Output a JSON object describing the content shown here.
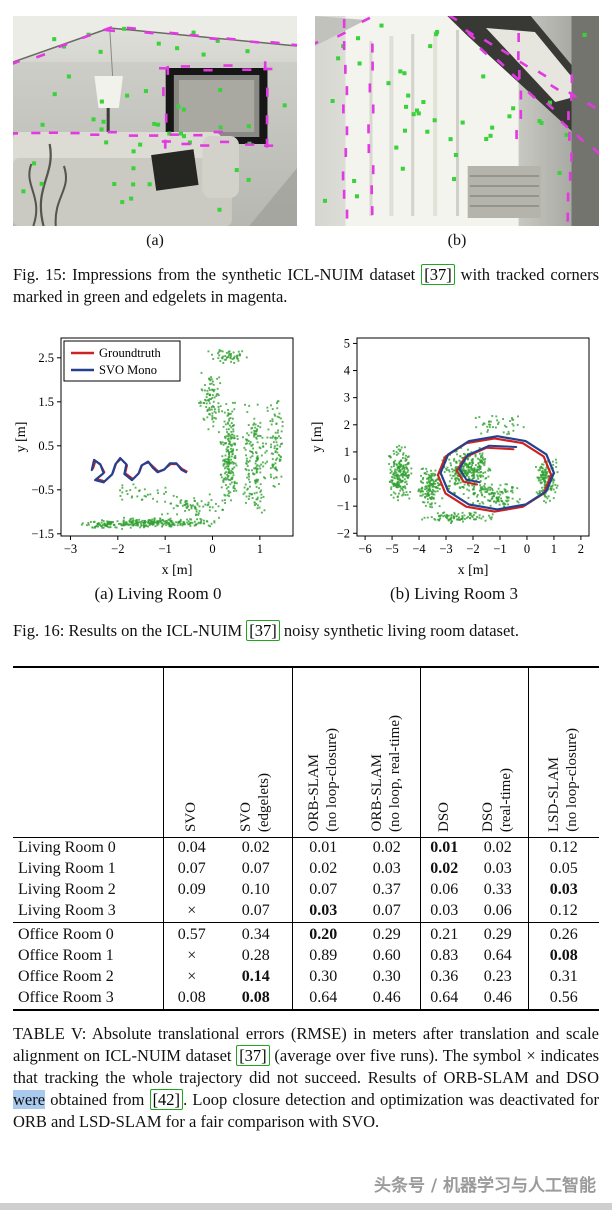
{
  "fig15": {
    "label_a": "(a)",
    "label_b": "(b)",
    "caption": {
      "part1": "Fig. 15: Impressions from the synthetic ICL-NUIM dataset ",
      "cite1": "[37]",
      "part2": " with tracked corners marked in green and edgelets in magenta."
    },
    "marker_colors": {
      "corner": "#3ad23a",
      "edgelet": "#e23ae2"
    },
    "scene_a_markers": {
      "corners": 48,
      "edges": [
        [
          2,
          46,
          95,
          12
        ],
        [
          95,
          12,
          277,
          30
        ],
        [
          150,
          52,
          250,
          52
        ],
        [
          150,
          128,
          250,
          128
        ],
        [
          150,
          52,
          150,
          128
        ],
        [
          250,
          52,
          250,
          128
        ],
        [
          0,
          118,
          200,
          118
        ]
      ]
    },
    "scene_b_markers": {
      "corners": 42,
      "edges": [
        [
          135,
          4,
          272,
          92
        ],
        [
          152,
          20,
          276,
          135
        ],
        [
          30,
          10,
          30,
          200
        ],
        [
          55,
          30,
          55,
          195
        ],
        [
          250,
          60,
          250,
          200
        ],
        [
          0,
          30,
          50,
          4
        ],
        [
          200,
          20,
          200,
          120
        ]
      ]
    }
  },
  "fig16": {
    "label_a": "(a) Living Room 0",
    "label_b": "(b) Living Room 3",
    "caption": {
      "part1": "Fig. 16: Results on the ICL-NUIM ",
      "cite1": "[37]",
      "part2": " noisy synthetic living room dataset."
    }
  },
  "chart_data": [
    {
      "type": "scatter",
      "name": "Living Room 0",
      "xlabel": "x [m]",
      "ylabel": "y [m]",
      "xlim": [
        -3.2,
        1.7
      ],
      "ylim": [
        -1.55,
        2.95
      ],
      "xticks": [
        -3,
        -2,
        -1,
        0,
        1
      ],
      "yticks": [
        -1.5,
        -0.5,
        0.5,
        1.5,
        2.5
      ],
      "grid": false,
      "legend_position": "top-left",
      "legend": [
        {
          "name": "Groundtruth",
          "color": "#cc2222"
        },
        {
          "name": "SVO Mono",
          "color": "#25408f"
        }
      ],
      "point_color": "#2fa02f",
      "clusters": [
        {
          "cx": -1.2,
          "cy": -1.25,
          "sx": 1.5,
          "sy": 0.12,
          "n": 230
        },
        {
          "cx": -2.3,
          "cy": -1.3,
          "sx": 0.5,
          "sy": 0.1,
          "n": 60
        },
        {
          "cx": 0.35,
          "cy": 0.3,
          "sx": 0.2,
          "sy": 1.3,
          "n": 200
        },
        {
          "cx": 0.9,
          "cy": 0.2,
          "sx": 0.3,
          "sy": 1.4,
          "n": 170
        },
        {
          "cx": 1.35,
          "cy": 0.5,
          "sx": 0.15,
          "sy": 1.2,
          "n": 80
        },
        {
          "cx": -0.05,
          "cy": 1.5,
          "sx": 0.25,
          "sy": 0.9,
          "n": 90
        },
        {
          "cx": -0.4,
          "cy": -0.9,
          "sx": 0.7,
          "sy": 0.3,
          "n": 70
        },
        {
          "cx": 0.3,
          "cy": 2.55,
          "sx": 0.5,
          "sy": 0.2,
          "n": 50
        },
        {
          "cx": -1.5,
          "cy": -0.6,
          "sx": 0.7,
          "sy": 0.3,
          "n": 30
        }
      ],
      "trajectories": [
        {
          "name": "Groundtruth",
          "color": "#cc2222",
          "width": 1.6,
          "points": [
            [
              -2.52,
              -0.02
            ],
            [
              -2.47,
              0.15
            ],
            [
              -2.35,
              0.05
            ],
            [
              -2.28,
              -0.1
            ],
            [
              -2.45,
              -0.25
            ],
            [
              -2.28,
              -0.3
            ],
            [
              -2.1,
              -0.12
            ],
            [
              -2.03,
              0.1
            ],
            [
              -1.93,
              0.2
            ],
            [
              -1.8,
              0.06
            ],
            [
              -1.84,
              -0.12
            ],
            [
              -1.68,
              -0.25
            ],
            [
              -1.54,
              -0.1
            ],
            [
              -1.48,
              0.07
            ],
            [
              -1.34,
              0.12
            ],
            [
              -1.24,
              0.02
            ],
            [
              -1.14,
              -0.08
            ],
            [
              -1.0,
              -0.02
            ],
            [
              -0.88,
              0.08
            ],
            [
              -0.74,
              0.08
            ],
            [
              -0.64,
              -0.02
            ],
            [
              -0.54,
              -0.08
            ]
          ]
        },
        {
          "name": "SVO Mono",
          "color": "#25408f",
          "width": 2.2,
          "points": [
            [
              -2.55,
              -0.05
            ],
            [
              -2.5,
              0.18
            ],
            [
              -2.37,
              0.08
            ],
            [
              -2.3,
              -0.12
            ],
            [
              -2.48,
              -0.28
            ],
            [
              -2.3,
              -0.33
            ],
            [
              -2.12,
              -0.15
            ],
            [
              -2.05,
              0.08
            ],
            [
              -1.95,
              0.22
            ],
            [
              -1.82,
              0.08
            ],
            [
              -1.86,
              -0.14
            ],
            [
              -1.7,
              -0.28
            ],
            [
              -1.56,
              -0.13
            ],
            [
              -1.5,
              0.05
            ],
            [
              -1.36,
              0.14
            ],
            [
              -1.26,
              0.0
            ],
            [
              -1.16,
              -0.1
            ],
            [
              -1.02,
              -0.04
            ],
            [
              -0.9,
              0.1
            ],
            [
              -0.76,
              0.1
            ],
            [
              -0.66,
              -0.04
            ],
            [
              -0.56,
              -0.1
            ]
          ]
        }
      ]
    },
    {
      "type": "scatter",
      "name": "Living Room 3",
      "xlabel": "x [m]",
      "ylabel": "y [m]",
      "xlim": [
        -6.3,
        2.3
      ],
      "ylim": [
        -2.1,
        5.2
      ],
      "xticks": [
        -6,
        -5,
        -4,
        -3,
        -2,
        -1,
        0,
        1,
        2
      ],
      "yticks": [
        -2,
        -1,
        0,
        1,
        2,
        3,
        4,
        5
      ],
      "grid": false,
      "legend": [],
      "point_color": "#2fa02f",
      "clusters": [
        {
          "cx": -4.7,
          "cy": 0.2,
          "sx": 0.45,
          "sy": 1.1,
          "n": 200
        },
        {
          "cx": -3.6,
          "cy": -0.3,
          "sx": 0.5,
          "sy": 0.8,
          "n": 150
        },
        {
          "cx": -2.2,
          "cy": 0.3,
          "sx": 1.0,
          "sy": 0.9,
          "n": 300
        },
        {
          "cx": -1.2,
          "cy": -0.6,
          "sx": 1.0,
          "sy": 0.5,
          "n": 120
        },
        {
          "cx": 0.7,
          "cy": 0.0,
          "sx": 0.45,
          "sy": 0.9,
          "n": 150
        },
        {
          "cx": -2.5,
          "cy": -1.4,
          "sx": 1.6,
          "sy": 0.25,
          "n": 90
        },
        {
          "cx": -1.0,
          "cy": 2.0,
          "sx": 1.2,
          "sy": 0.5,
          "n": 40
        }
      ],
      "trajectories": [
        {
          "name": "Groundtruth",
          "color": "#cc2222",
          "width": 2.2,
          "points": [
            [
              0.9,
              0.15
            ],
            [
              0.62,
              0.83
            ],
            [
              -0.15,
              1.32
            ],
            [
              -1.2,
              1.5
            ],
            [
              -2.25,
              1.32
            ],
            [
              -3.02,
              0.83
            ],
            [
              -3.3,
              0.15
            ],
            [
              -3.02,
              -0.53
            ],
            [
              -2.25,
              -1.02
            ],
            [
              -1.2,
              -1.2
            ],
            [
              -0.15,
              -1.02
            ],
            [
              0.62,
              -0.53
            ],
            [
              0.9,
              0.15
            ]
          ]
        },
        {
          "name": "SVO Mono",
          "color": "#25408f",
          "width": 2.2,
          "points": [
            [
              1.0,
              0.23
            ],
            [
              0.72,
              0.91
            ],
            [
              -0.05,
              1.4
            ],
            [
              -1.1,
              1.58
            ],
            [
              -2.15,
              1.4
            ],
            [
              -2.92,
              0.91
            ],
            [
              -3.2,
              0.23
            ],
            [
              -2.92,
              -0.45
            ],
            [
              -2.15,
              -0.94
            ],
            [
              -1.1,
              -1.12
            ],
            [
              -0.05,
              -0.94
            ],
            [
              0.72,
              -0.45
            ],
            [
              1.0,
              0.23
            ]
          ]
        },
        {
          "name": "",
          "color": "#cc2222",
          "width": 2.0,
          "points": [
            [
              -0.5,
              1.1
            ],
            [
              -1.5,
              1.15
            ],
            [
              -2.3,
              0.8
            ],
            [
              -2.6,
              0.3
            ],
            [
              -2.35,
              -0.1
            ],
            [
              -1.85,
              -0.2
            ]
          ]
        },
        {
          "name": "",
          "color": "#25408f",
          "width": 2.0,
          "points": [
            [
              -0.4,
              1.18
            ],
            [
              -1.4,
              1.23
            ],
            [
              -2.2,
              0.88
            ],
            [
              -2.5,
              0.38
            ],
            [
              -2.25,
              -0.02
            ],
            [
              -1.75,
              -0.12
            ]
          ]
        }
      ]
    }
  ],
  "table": {
    "vlines": [
      0,
      2,
      4,
      6
    ],
    "headers": [
      [
        "SVO",
        ""
      ],
      [
        "SVO",
        "(edgelets)"
      ],
      [
        "ORB-SLAM",
        "(no loop-closure)"
      ],
      [
        "ORB-SLAM",
        "(no loop, real-time)"
      ],
      [
        "DSO",
        ""
      ],
      [
        "DSO",
        "(real-time)"
      ],
      [
        "LSD-SLAM",
        "(no loop-closure)"
      ]
    ],
    "groups": [
      {
        "rows": [
          {
            "label": "Living Room 0",
            "values": [
              "0.04",
              "0.02",
              "0.01",
              "0.02",
              "0.01",
              "0.02",
              "0.12"
            ],
            "bold": [
              4
            ]
          },
          {
            "label": "Living Room 1",
            "values": [
              "0.07",
              "0.07",
              "0.02",
              "0.03",
              "0.02",
              "0.03",
              "0.05"
            ],
            "bold": [
              4
            ]
          },
          {
            "label": "Living Room 2",
            "values": [
              "0.09",
              "0.10",
              "0.07",
              "0.37",
              "0.06",
              "0.33",
              "0.03"
            ],
            "bold": [
              6
            ]
          },
          {
            "label": "Living Room 3",
            "values": [
              "×",
              "0.07",
              "0.03",
              "0.07",
              "0.03",
              "0.06",
              "0.12"
            ],
            "bold": [
              2
            ]
          }
        ]
      },
      {
        "rows": [
          {
            "label": "Office Room 0",
            "values": [
              "0.57",
              "0.34",
              "0.20",
              "0.29",
              "0.21",
              "0.29",
              "0.26"
            ],
            "bold": [
              2
            ]
          },
          {
            "label": "Office Room 1",
            "values": [
              "×",
              "0.28",
              "0.89",
              "0.60",
              "0.83",
              "0.64",
              "0.08"
            ],
            "bold": [
              6
            ]
          },
          {
            "label": "Office Room 2",
            "values": [
              "×",
              "0.14",
              "0.30",
              "0.30",
              "0.36",
              "0.23",
              "0.31"
            ],
            "bold": [
              1
            ]
          },
          {
            "label": "Office Room 3",
            "values": [
              "0.08",
              "0.08",
              "0.64",
              "0.46",
              "0.64",
              "0.46",
              "0.56"
            ],
            "bold": [
              1
            ]
          }
        ]
      }
    ]
  },
  "table_caption": {
    "part1": "TABLE V: Absolute translational errors (RMSE) in meters after translation and scale alignment on ICL-NUIM dataset ",
    "cite1": "[37]",
    "part2": " (average over five runs). The symbol × indicates that tracking the whole trajectory did not succeed. Results of ORB-SLAM and DSO ",
    "highlight": "were",
    "part3": " obtained from ",
    "cite2": "[42]",
    "part4": ". Loop closure detection and optimization was deactivated for ORB and LSD-SLAM for a fair comparison with SVO."
  },
  "watermark": "头条号 / 机器学习与人工智能"
}
